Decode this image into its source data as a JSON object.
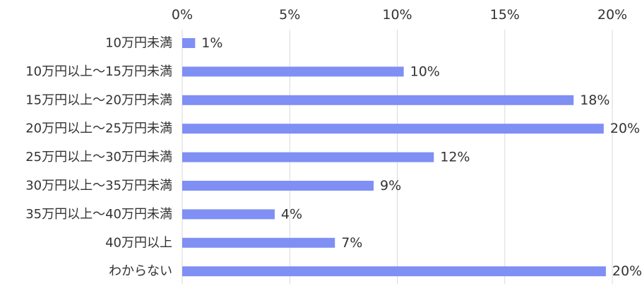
{
  "chart_data": {
    "type": "bar",
    "orientation": "horizontal",
    "categories": [
      "10万円未満",
      "10万円以上～15万円未満",
      "15万円以上～20万円未満",
      "20万円以上～25万円未満",
      "25万円以上～30万円未満",
      "30万円以上～35万円未満",
      "35万円以上～40万円未満",
      "40万円以上",
      "わからない"
    ],
    "values": [
      0.6,
      10.3,
      18.2,
      19.6,
      11.7,
      8.9,
      4.3,
      7.1,
      19.7
    ],
    "value_labels": [
      "1%",
      "10%",
      "18%",
      "20%",
      "12%",
      "9%",
      "4%",
      "7%",
      "20%"
    ],
    "x_ticks": [
      "0%",
      "5%",
      "10%",
      "15%",
      "20%"
    ],
    "xlim": [
      0,
      20
    ],
    "grid": true,
    "axis_position": "top",
    "bar_color": "#7f8ff4"
  }
}
